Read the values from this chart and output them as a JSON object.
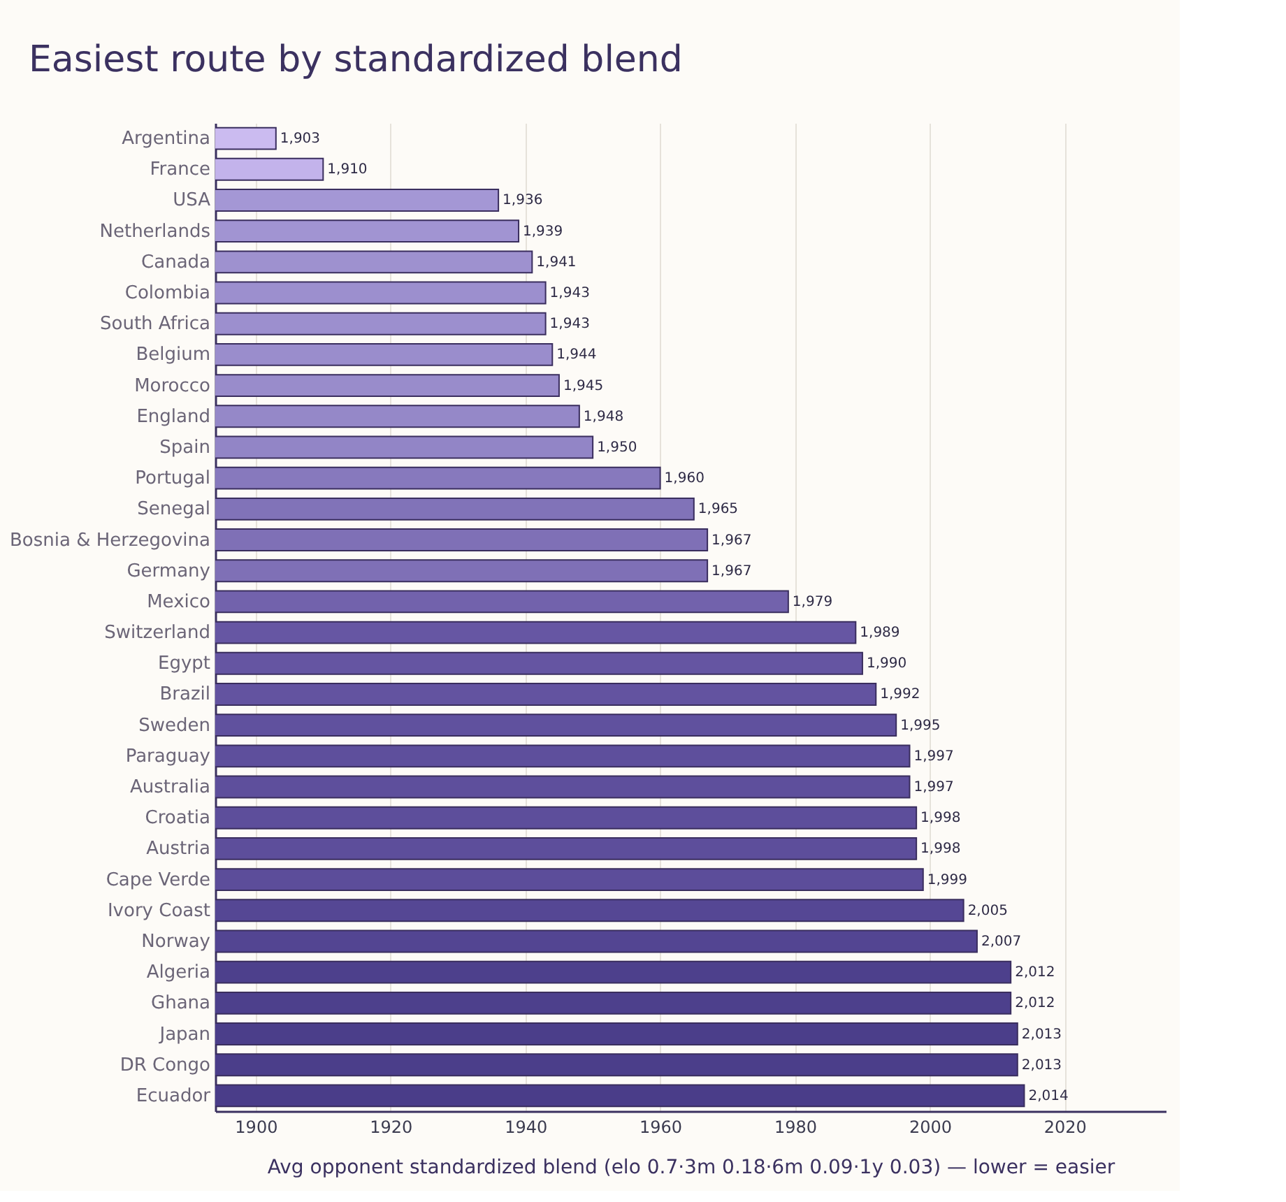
{
  "chart_data": {
    "type": "bar",
    "orientation": "horizontal",
    "title": "Easiest route by standardized blend",
    "xlabel": "Avg opponent standardized blend  (elo 0.7·3m 0.18·6m 0.09·1y 0.03) — lower = easier",
    "categories": [
      "Argentina",
      "France",
      "USA",
      "Netherlands",
      "Canada",
      "Colombia",
      "South Africa",
      "Belgium",
      "Morocco",
      "England",
      "Spain",
      "Portugal",
      "Senegal",
      "Bosnia & Herzegovina",
      "Germany",
      "Mexico",
      "Switzerland",
      "Egypt",
      "Brazil",
      "Sweden",
      "Paraguay",
      "Australia",
      "Croatia",
      "Austria",
      "Cape Verde",
      "Ivory Coast",
      "Norway",
      "Algeria",
      "Ghana",
      "Japan",
      "DR Congo",
      "Ecuador"
    ],
    "values": [
      1903,
      1910,
      1936,
      1939,
      1941,
      1943,
      1943,
      1944,
      1945,
      1948,
      1950,
      1960,
      1965,
      1967,
      1967,
      1979,
      1989,
      1990,
      1992,
      1995,
      1997,
      1997,
      1998,
      1998,
      1999,
      2005,
      2007,
      2012,
      2012,
      2013,
      2013,
      2014
    ],
    "value_labels": [
      "1,903",
      "1,910",
      "1,936",
      "1,939",
      "1,941",
      "1,943",
      "1,943",
      "1,944",
      "1,945",
      "1,948",
      "1,950",
      "1,960",
      "1,965",
      "1,967",
      "1,967",
      "1,979",
      "1,989",
      "1,990",
      "1,992",
      "1,995",
      "1,997",
      "1,997",
      "1,998",
      "1,998",
      "1,999",
      "2,005",
      "2,007",
      "2,012",
      "2,012",
      "2,013",
      "2,013",
      "2,014"
    ],
    "colors": [
      "#cbbbf0",
      "#c3b3eb",
      "#a497d5",
      "#a194d2",
      "#9e91cf",
      "#9c8fce",
      "#9c8fce",
      "#9a8dcc",
      "#998ccb",
      "#9588c8",
      "#9285c6",
      "#8779bd",
      "#8173b8",
      "#7f70b6",
      "#7f70b6",
      "#7262ac",
      "#6656a3",
      "#6555a2",
      "#6353a0",
      "#60519e",
      "#5e4f9c",
      "#5e4f9c",
      "#5d4e9b",
      "#5d4e9b",
      "#5c4d9a",
      "#554794",
      "#534592",
      "#4d408c",
      "#4d408c",
      "#4b3e8a",
      "#4b3e8a",
      "#4a3d89"
    ],
    "xlim": [
      1894,
      2035
    ],
    "xticks": [
      1900,
      1920,
      1940,
      1960,
      1980,
      2000,
      2020
    ],
    "grid": "x"
  }
}
